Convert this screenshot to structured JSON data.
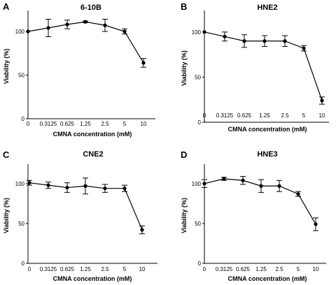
{
  "chart_data": [
    {
      "type": "line",
      "panel": "A",
      "title": "6-10B",
      "xlabel": "CMNA concentration (mM)",
      "ylabel": "Viability (%)",
      "categories": [
        "0",
        "0.3125",
        "0.625",
        "1.25",
        "2.5",
        "5",
        "10"
      ],
      "values": [
        100,
        104,
        108,
        111,
        107,
        100,
        64
      ],
      "errors": [
        0,
        10,
        5,
        1,
        7,
        3,
        5
      ],
      "yticks": [
        "0",
        "50",
        "100"
      ],
      "ylim": [
        0,
        120
      ]
    },
    {
      "type": "line",
      "panel": "B",
      "title": "HNE2",
      "xlabel": "CMNA concentration (mM)",
      "ylabel": "Viability (%)",
      "categories": [
        "0",
        "0.3125",
        "0.625",
        "1.25",
        "2.5",
        "5",
        "10"
      ],
      "values": [
        100,
        95,
        90,
        90,
        90,
        82,
        24
      ],
      "errors": [
        0,
        5,
        7,
        6,
        6,
        3,
        4
      ],
      "yticks": [
        "0",
        "50",
        "100"
      ],
      "ylim": [
        0,
        120
      ]
    },
    {
      "type": "line",
      "panel": "C",
      "title": "CNE2",
      "xlabel": "CMNA concentration (mM)",
      "ylabel": "Viability (%)",
      "categories": [
        "0",
        "0.3125",
        "0.625",
        "1.25",
        "2.5",
        "5",
        "10"
      ],
      "values": [
        101,
        98,
        95,
        97,
        94,
        94,
        42
      ],
      "errors": [
        3,
        4,
        6,
        10,
        5,
        4,
        5
      ],
      "yticks": [
        "0",
        "50",
        "100"
      ],
      "ylim": [
        0,
        120
      ]
    },
    {
      "type": "line",
      "panel": "D",
      "title": "HNE3",
      "xlabel": "CMNA concentration (mM)",
      "ylabel": "Viability (%)",
      "categories": [
        "0",
        "0.3125",
        "0.625",
        "1.25",
        "2.5",
        "5",
        "10"
      ],
      "values": [
        100,
        106,
        104,
        97,
        97,
        87,
        49
      ],
      "errors": [
        5,
        2,
        5,
        8,
        7,
        3,
        8
      ],
      "yticks": [
        "0",
        "50",
        "100"
      ],
      "ylim": [
        0,
        120
      ]
    }
  ]
}
